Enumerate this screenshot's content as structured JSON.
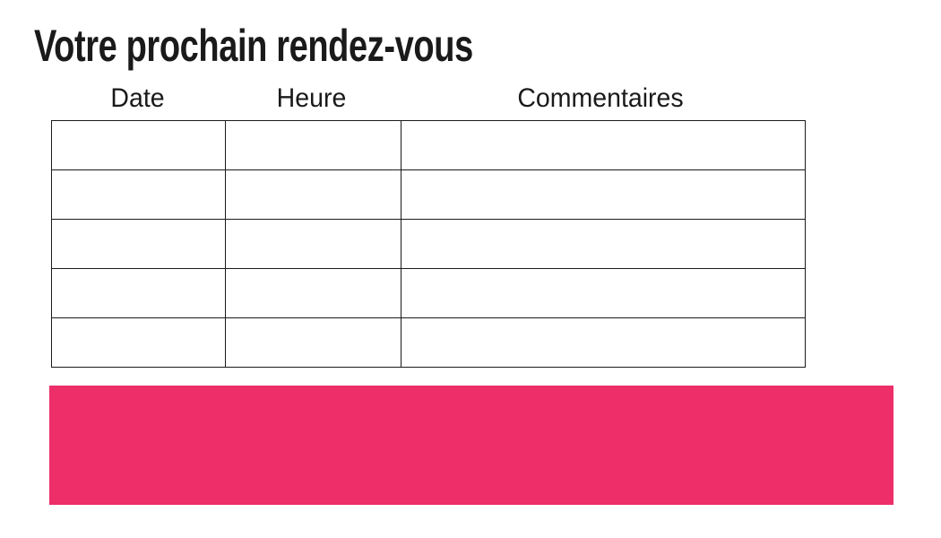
{
  "page": {
    "title": "Votre prochain rendez-vous",
    "background": "#ffffff"
  },
  "table": {
    "headers": [
      "Date",
      "Heure",
      "Commentaires"
    ],
    "rows": [
      [
        "",
        "",
        ""
      ],
      [
        "",
        "",
        ""
      ],
      [
        "",
        "",
        ""
      ],
      [
        "",
        "",
        ""
      ],
      [
        "",
        "",
        ""
      ]
    ],
    "border_color": "#1b1b1b"
  },
  "banner": {
    "color": "#ED2E68"
  },
  "colors": {
    "text": "#1a1a1a",
    "accent_pink": "#ED2E68",
    "background": "#ffffff"
  }
}
